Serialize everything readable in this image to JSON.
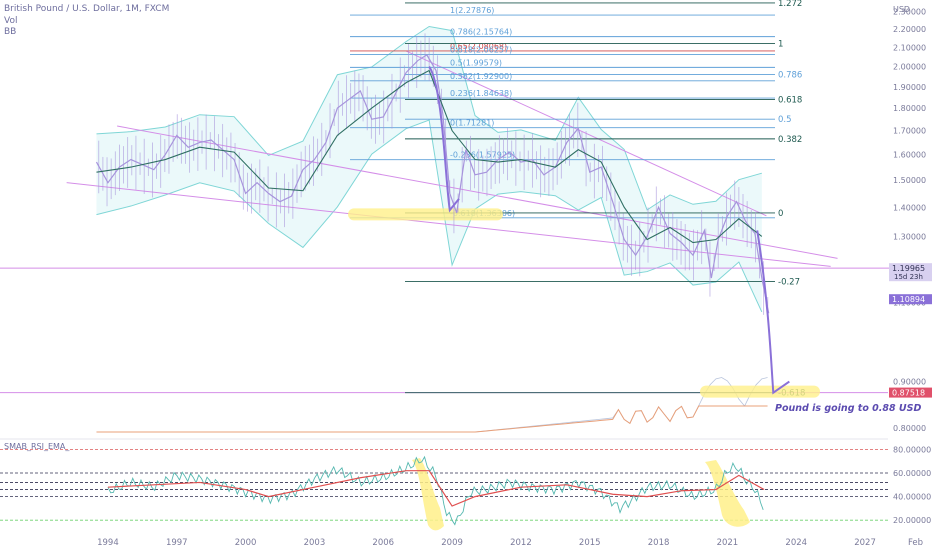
{
  "header": {
    "symbol": "British Pound / U.S. Dollar, 1M, FXCM",
    "vol": "Vol",
    "bb": "BB"
  },
  "annotation": "Pound is going to 0.88 USD",
  "colors": {
    "price": "#a794dc",
    "bb_mid": "#2f6f63",
    "bb_band": "#7fd6d6",
    "bb_fill": "#e6f7f9",
    "fib_line": "#5fa0d8",
    "fib_dark": "#1f5a50",
    "trend": "#d48ee8",
    "highlight": "#fff08a",
    "arrow": "#8a70d8",
    "volume": "#b8c4dc",
    "vol_ma": "#e8a07a",
    "rsi": "#56b8b0",
    "ema": "#e05050"
  },
  "chart_data": [
    {
      "type": "line",
      "title": "British Pound / U.S. Dollar, 1M, FXCM",
      "ylabel": "USD",
      "y_scale": "log",
      "ylim": [
        0.78,
        2.32
      ],
      "xlim": [
        1993.0,
        2028.0
      ],
      "x_ticks": [
        "1994",
        "1997",
        "2000",
        "2003",
        "2006",
        "2009",
        "2012",
        "2015",
        "2018",
        "2021",
        "2024",
        "2027",
        "Feb"
      ],
      "y_ticks": [
        "0.80000",
        "0.90000",
        "1.10000",
        "1.30000",
        "1.40000",
        "1.50000",
        "1.60000",
        "1.70000",
        "1.80000",
        "1.90000",
        "2.00000",
        "2.10000",
        "2.20000",
        "2.30000"
      ],
      "price_labels": [
        {
          "value": 1.19965,
          "text": "1.19965",
          "sub": "15d 23h"
        },
        {
          "value": 1.10894,
          "text": "1.10894"
        },
        {
          "value": 0.87518,
          "text": "0.87518"
        }
      ],
      "series": [
        {
          "name": "Price",
          "x": [
            1993.5,
            1994.0,
            1994.5,
            1995.0,
            1995.5,
            1996.0,
            1996.5,
            1997.0,
            1997.5,
            1998.0,
            1998.5,
            1999.0,
            1999.5,
            2000.0,
            2000.5,
            2001.0,
            2001.5,
            2002.0,
            2002.5,
            2003.0,
            2003.5,
            2004.0,
            2004.5,
            2005.0,
            2005.5,
            2006.0,
            2006.5,
            2007.0,
            2007.5,
            2007.9,
            2008.3,
            2008.6,
            2008.9,
            2009.2,
            2009.6,
            2010.0,
            2010.5,
            2011.0,
            2011.5,
            2012.0,
            2012.5,
            2013.0,
            2013.5,
            2014.0,
            2014.5,
            2015.0,
            2015.5,
            2016.0,
            2016.5,
            2017.0,
            2017.5,
            2018.0,
            2018.5,
            2019.0,
            2019.5,
            2020.0,
            2020.3,
            2020.6,
            2021.0,
            2021.4,
            2021.8,
            2022.2,
            2022.5,
            2022.8
          ],
          "values": [
            1.57,
            1.49,
            1.55,
            1.58,
            1.56,
            1.54,
            1.6,
            1.68,
            1.63,
            1.65,
            1.66,
            1.62,
            1.58,
            1.45,
            1.49,
            1.45,
            1.42,
            1.44,
            1.54,
            1.58,
            1.65,
            1.8,
            1.84,
            1.88,
            1.75,
            1.76,
            1.86,
            1.97,
            2.03,
            2.06,
            1.98,
            1.77,
            1.45,
            1.38,
            1.62,
            1.52,
            1.53,
            1.58,
            1.61,
            1.57,
            1.58,
            1.52,
            1.55,
            1.65,
            1.71,
            1.53,
            1.55,
            1.42,
            1.29,
            1.24,
            1.3,
            1.4,
            1.31,
            1.28,
            1.24,
            1.32,
            1.17,
            1.29,
            1.37,
            1.42,
            1.35,
            1.31,
            1.17,
            1.07
          ]
        },
        {
          "name": "BB basis",
          "x": [
            1993.5,
            1995.0,
            1996.5,
            1998.0,
            1999.5,
            2001.0,
            2002.5,
            2004.0,
            2005.5,
            2007.0,
            2008.0,
            2009.0,
            2010.0,
            2011.0,
            2012.0,
            2013.5,
            2014.5,
            2015.5,
            2016.5,
            2017.5,
            2018.5,
            2019.5,
            2020.5,
            2021.5,
            2022.5
          ],
          "values": [
            1.53,
            1.55,
            1.58,
            1.63,
            1.61,
            1.47,
            1.46,
            1.68,
            1.8,
            1.92,
            1.98,
            1.7,
            1.58,
            1.57,
            1.58,
            1.55,
            1.62,
            1.57,
            1.4,
            1.29,
            1.33,
            1.28,
            1.29,
            1.36,
            1.3
          ]
        }
      ],
      "fibonacci_left": [
        {
          "level": "1",
          "value": 2.27876,
          "label": "1(2.27876)"
        },
        {
          "level": "0.786",
          "value": 2.15764,
          "label": "0.786(2.15764)"
        },
        {
          "level": "0.65",
          "value": 2.08068,
          "label": "0.65(2.08068)"
        },
        {
          "level": "0.618",
          "value": 2.06257,
          "label": "0.618(2.06257)"
        },
        {
          "level": "0.5",
          "value": 1.99579,
          "label": "0.5(1.99579)"
        },
        {
          "level": "0.382",
          "value": 1.929,
          "label": "0.382(1.92900)"
        },
        {
          "level": "0.236",
          "value": 1.84638,
          "label": "0.236(1.84638)"
        },
        {
          "level": "0",
          "value": 1.71281,
          "label": "0(1.71281)"
        },
        {
          "level": "-0.236",
          "value": 1.57925,
          "label": "-0.236(1.57925)"
        },
        {
          "level": "-0.618",
          "value": 1.36306,
          "label": "-0.618(1.36306)"
        }
      ],
      "fibonacci_right": [
        {
          "level": "1.272",
          "value": 2.35,
          "label": "1.272"
        },
        {
          "level": "1",
          "value": 2.12,
          "label": "1"
        },
        {
          "level": "0.786",
          "value": 1.96,
          "label": "0.786"
        },
        {
          "level": "0.618",
          "value": 1.84,
          "label": "0.618"
        },
        {
          "level": "0.5",
          "value": 1.75,
          "label": "0.5"
        },
        {
          "level": "0.382",
          "value": 1.665,
          "label": "0.382"
        },
        {
          "level": "0",
          "value": 1.38,
          "label": "0"
        },
        {
          "level": "-0.27",
          "value": 1.16,
          "label": "-0.27"
        },
        {
          "level": "-0.618",
          "value": 0.875,
          "label": "-0.618"
        }
      ]
    },
    {
      "type": "line",
      "title": "SMAB_RSI_EMA_",
      "ylim": [
        10,
        88
      ],
      "y_ticks": [
        "20.00000",
        "40.00000",
        "60.00000",
        "80.00000"
      ],
      "series": [
        {
          "name": "RSI",
          "x": [
            1994.0,
            1995.0,
            1996.0,
            1997.0,
            1998.0,
            1999.0,
            2000.0,
            2001.0,
            2002.0,
            2003.0,
            2004.0,
            2005.0,
            2006.0,
            2007.0,
            2007.7,
            2008.3,
            2008.8,
            2009.2,
            2009.8,
            2010.5,
            2011.5,
            2012.5,
            2013.5,
            2014.5,
            2015.5,
            2016.3,
            2016.8,
            2017.5,
            2018.5,
            2019.5,
            2020.5,
            2021.0,
            2021.4,
            2021.8,
            2022.2,
            2022.6
          ],
          "values": [
            44,
            52,
            48,
            58,
            55,
            50,
            44,
            38,
            42,
            55,
            63,
            52,
            56,
            64,
            72,
            58,
            24,
            18,
            44,
            46,
            52,
            48,
            46,
            52,
            44,
            30,
            36,
            48,
            50,
            40,
            46,
            62,
            66,
            54,
            46,
            30
          ]
        },
        {
          "name": "EMA",
          "x": [
            1994.0,
            1996.0,
            1998.0,
            2000.0,
            2001.0,
            2003.0,
            2005.0,
            2007.0,
            2008.0,
            2009.0,
            2010.0,
            2012.0,
            2014.0,
            2016.0,
            2017.5,
            2019.0,
            2020.5,
            2021.5,
            2022.6
          ],
          "values": [
            48,
            50,
            52,
            46,
            40,
            48,
            56,
            62,
            62,
            32,
            40,
            48,
            50,
            42,
            40,
            45,
            46,
            58,
            46
          ]
        }
      ]
    }
  ]
}
